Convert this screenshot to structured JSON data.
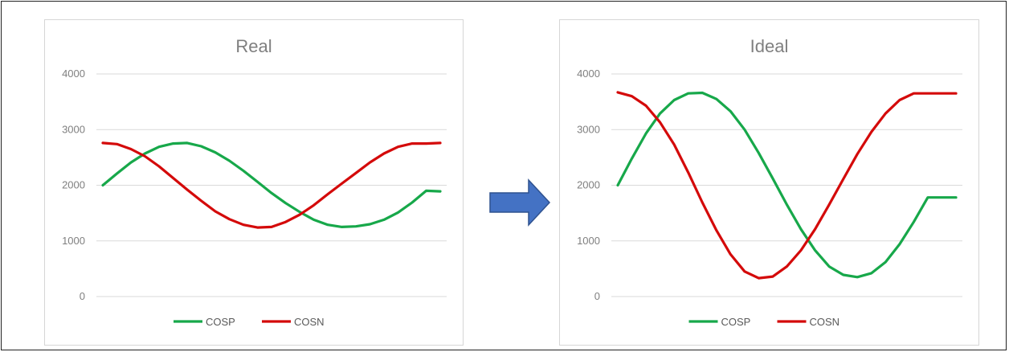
{
  "chart_data": [
    {
      "type": "line",
      "title": "Real",
      "xlabel": "",
      "ylabel": "",
      "ylim": [
        0,
        4000
      ],
      "yticks": [
        "0",
        "1000",
        "2000",
        "3000",
        "4000"
      ],
      "grid": true,
      "legend": "bottom",
      "x": [
        0,
        1,
        2,
        3,
        4,
        5,
        6,
        7,
        8,
        9,
        10,
        11,
        12,
        13,
        14,
        15,
        16,
        17,
        18,
        19,
        20,
        21,
        22,
        23,
        24
      ],
      "series": [
        {
          "name": "COSP",
          "color": "#17a84a",
          "values": [
            2000,
            2210,
            2410,
            2570,
            2690,
            2750,
            2760,
            2700,
            2590,
            2440,
            2260,
            2060,
            1860,
            1680,
            1520,
            1380,
            1290,
            1250,
            1260,
            1300,
            1380,
            1510,
            1690,
            1900,
            1890
          ]
        },
        {
          "name": "COSN",
          "color": "#d40a0a",
          "values": [
            2760,
            2740,
            2650,
            2520,
            2340,
            2130,
            1920,
            1720,
            1530,
            1390,
            1290,
            1240,
            1250,
            1340,
            1470,
            1640,
            1840,
            2030,
            2220,
            2410,
            2570,
            2690,
            2750,
            2750,
            2760
          ]
        }
      ]
    },
    {
      "type": "line",
      "title": "Ideal",
      "xlabel": "",
      "ylabel": "",
      "ylim": [
        0,
        4000
      ],
      "yticks": [
        "0",
        "1000",
        "2000",
        "3000",
        "4000"
      ],
      "grid": true,
      "legend": "bottom",
      "x": [
        0,
        1,
        2,
        3,
        4,
        5,
        6,
        7,
        8,
        9,
        10,
        11,
        12,
        13,
        14,
        15,
        16,
        17,
        18,
        19,
        20,
        21,
        22,
        23,
        24
      ],
      "series": [
        {
          "name": "COSP",
          "color": "#17a84a",
          "values": [
            2000,
            2480,
            2930,
            3290,
            3530,
            3650,
            3660,
            3550,
            3330,
            3000,
            2580,
            2120,
            1650,
            1210,
            830,
            540,
            390,
            350,
            420,
            620,
            940,
            1340,
            1780,
            1780,
            1780
          ]
        },
        {
          "name": "COSN",
          "color": "#d40a0a",
          "values": [
            3670,
            3600,
            3430,
            3130,
            2730,
            2230,
            1690,
            1190,
            760,
            450,
            330,
            360,
            540,
            830,
            1210,
            1650,
            2110,
            2560,
            2960,
            3290,
            3530,
            3650,
            3650,
            3650,
            3650
          ]
        }
      ]
    }
  ],
  "arrow": {
    "color": "#4472c4",
    "border": "#2f528f"
  }
}
